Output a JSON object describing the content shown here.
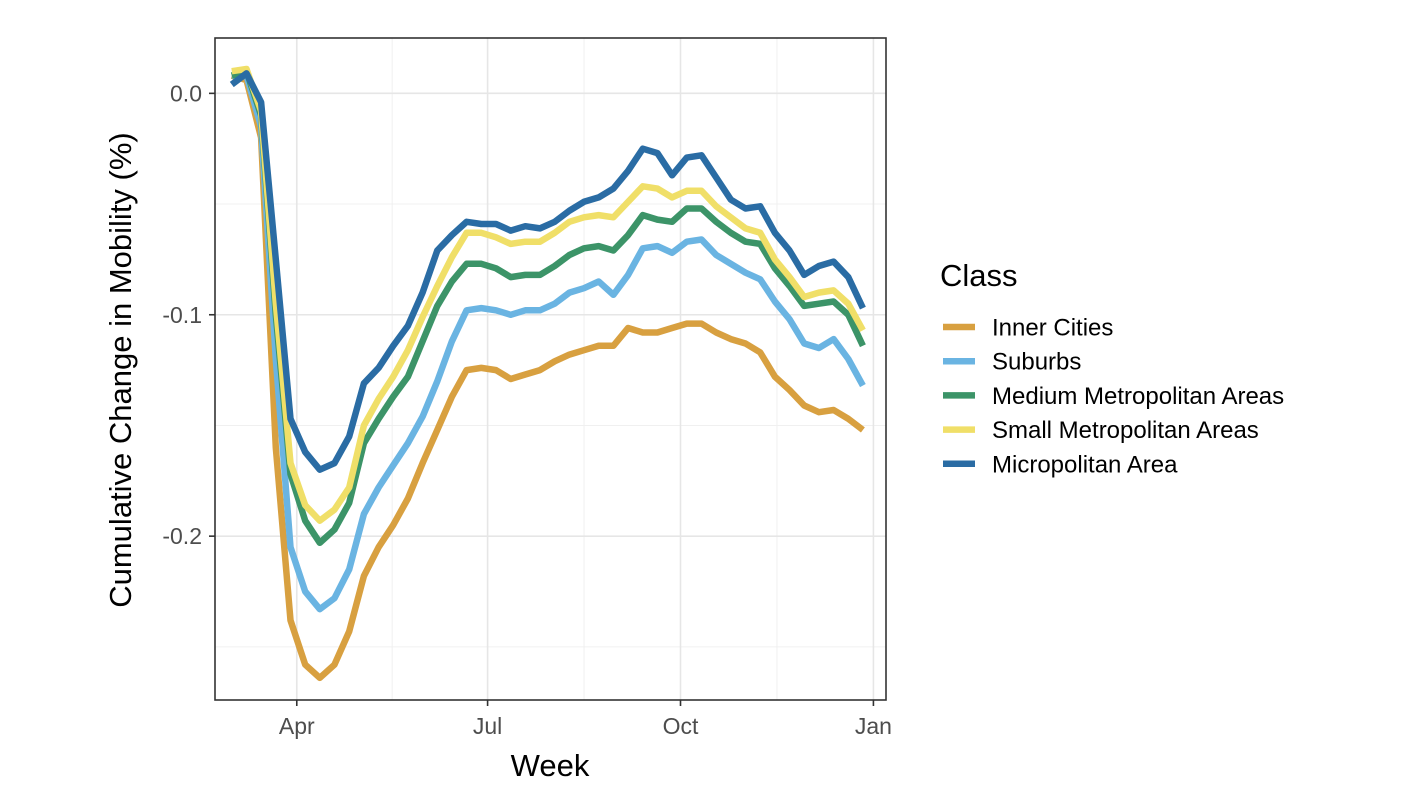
{
  "chart_data": {
    "type": "line",
    "xlabel": "Week",
    "ylabel": "Cumulative Change in Mobility (%)",
    "x_ticks": [
      "Apr",
      "Jul",
      "Oct",
      "Jan"
    ],
    "x_tick_dates": [
      "2020-04-01",
      "2020-07-01",
      "2020-10-01",
      "2021-01-01"
    ],
    "y_ticks": [
      0.0,
      -0.1,
      -0.2
    ],
    "y_tick_labels": [
      "0.0",
      "-0.1",
      "-0.2"
    ],
    "xlim": [
      "2020-02-22",
      "2021-01-07"
    ],
    "ylim": [
      -0.274,
      0.025
    ],
    "grid": true,
    "legend": {
      "title": "Class",
      "position": "right"
    },
    "x": [
      "2020-03-01",
      "2020-03-08",
      "2020-03-15",
      "2020-03-22",
      "2020-03-29",
      "2020-04-05",
      "2020-04-12",
      "2020-04-19",
      "2020-04-26",
      "2020-05-03",
      "2020-05-10",
      "2020-05-17",
      "2020-05-24",
      "2020-05-31",
      "2020-06-07",
      "2020-06-14",
      "2020-06-21",
      "2020-06-28",
      "2020-07-05",
      "2020-07-12",
      "2020-07-19",
      "2020-07-26",
      "2020-08-02",
      "2020-08-09",
      "2020-08-16",
      "2020-08-23",
      "2020-08-30",
      "2020-09-06",
      "2020-09-13",
      "2020-09-20",
      "2020-09-27",
      "2020-10-04",
      "2020-10-11",
      "2020-10-18",
      "2020-10-25",
      "2020-11-01",
      "2020-11-08",
      "2020-11-15",
      "2020-11-22",
      "2020-11-29",
      "2020-12-06",
      "2020-12-13",
      "2020-12-20",
      "2020-12-27"
    ],
    "series": [
      {
        "name": "Inner Cities",
        "color": "#d8a040",
        "values": [
          0.008,
          0.006,
          -0.02,
          -0.16,
          -0.238,
          -0.258,
          -0.264,
          -0.258,
          -0.243,
          -0.218,
          -0.205,
          -0.195,
          -0.183,
          -0.167,
          -0.152,
          -0.137,
          -0.125,
          -0.124,
          -0.125,
          -0.129,
          -0.127,
          -0.125,
          -0.121,
          -0.118,
          -0.116,
          -0.114,
          -0.114,
          -0.106,
          -0.108,
          -0.108,
          -0.106,
          -0.104,
          -0.104,
          -0.108,
          -0.111,
          -0.113,
          -0.117,
          -0.128,
          -0.134,
          -0.141,
          -0.144,
          -0.143,
          -0.147,
          -0.152
        ]
      },
      {
        "name": "Suburbs",
        "color": "#6ab4e2",
        "values": [
          0.008,
          0.008,
          -0.015,
          -0.12,
          -0.205,
          -0.225,
          -0.233,
          -0.228,
          -0.215,
          -0.19,
          -0.178,
          -0.168,
          -0.158,
          -0.146,
          -0.13,
          -0.112,
          -0.098,
          -0.097,
          -0.098,
          -0.1,
          -0.098,
          -0.098,
          -0.095,
          -0.09,
          -0.088,
          -0.085,
          -0.091,
          -0.082,
          -0.07,
          -0.069,
          -0.072,
          -0.067,
          -0.066,
          -0.073,
          -0.077,
          -0.081,
          -0.084,
          -0.094,
          -0.102,
          -0.113,
          -0.115,
          -0.111,
          -0.12,
          -0.132
        ]
      },
      {
        "name": "Medium Metropolitan Areas",
        "color": "#3c9468",
        "values": [
          0.008,
          0.01,
          -0.01,
          -0.1,
          -0.172,
          -0.193,
          -0.203,
          -0.197,
          -0.185,
          -0.158,
          -0.147,
          -0.137,
          -0.128,
          -0.112,
          -0.096,
          -0.085,
          -0.077,
          -0.077,
          -0.079,
          -0.083,
          -0.082,
          -0.082,
          -0.078,
          -0.073,
          -0.07,
          -0.069,
          -0.071,
          -0.064,
          -0.055,
          -0.057,
          -0.058,
          -0.052,
          -0.052,
          -0.058,
          -0.063,
          -0.067,
          -0.068,
          -0.079,
          -0.087,
          -0.096,
          -0.095,
          -0.094,
          -0.1,
          -0.114
        ]
      },
      {
        "name": "Small Metropolitan Areas",
        "color": "#f0df68",
        "values": [
          0.01,
          0.011,
          -0.008,
          -0.095,
          -0.167,
          -0.186,
          -0.193,
          -0.188,
          -0.178,
          -0.15,
          -0.138,
          -0.128,
          -0.116,
          -0.101,
          -0.087,
          -0.074,
          -0.063,
          -0.063,
          -0.065,
          -0.068,
          -0.067,
          -0.067,
          -0.063,
          -0.058,
          -0.056,
          -0.055,
          -0.056,
          -0.049,
          -0.042,
          -0.043,
          -0.047,
          -0.044,
          -0.044,
          -0.051,
          -0.056,
          -0.061,
          -0.063,
          -0.075,
          -0.083,
          -0.092,
          -0.09,
          -0.089,
          -0.095,
          -0.107
        ]
      },
      {
        "name": "Micropolitan Area",
        "color": "#2a6ca4",
        "values": [
          0.004,
          0.009,
          -0.004,
          -0.075,
          -0.147,
          -0.162,
          -0.17,
          -0.167,
          -0.155,
          -0.131,
          -0.124,
          -0.114,
          -0.105,
          -0.09,
          -0.071,
          -0.064,
          -0.058,
          -0.059,
          -0.059,
          -0.062,
          -0.06,
          -0.061,
          -0.058,
          -0.053,
          -0.049,
          -0.047,
          -0.043,
          -0.035,
          -0.025,
          -0.027,
          -0.037,
          -0.029,
          -0.028,
          -0.038,
          -0.048,
          -0.052,
          -0.051,
          -0.063,
          -0.071,
          -0.082,
          -0.078,
          -0.076,
          -0.083,
          -0.097
        ]
      }
    ]
  }
}
